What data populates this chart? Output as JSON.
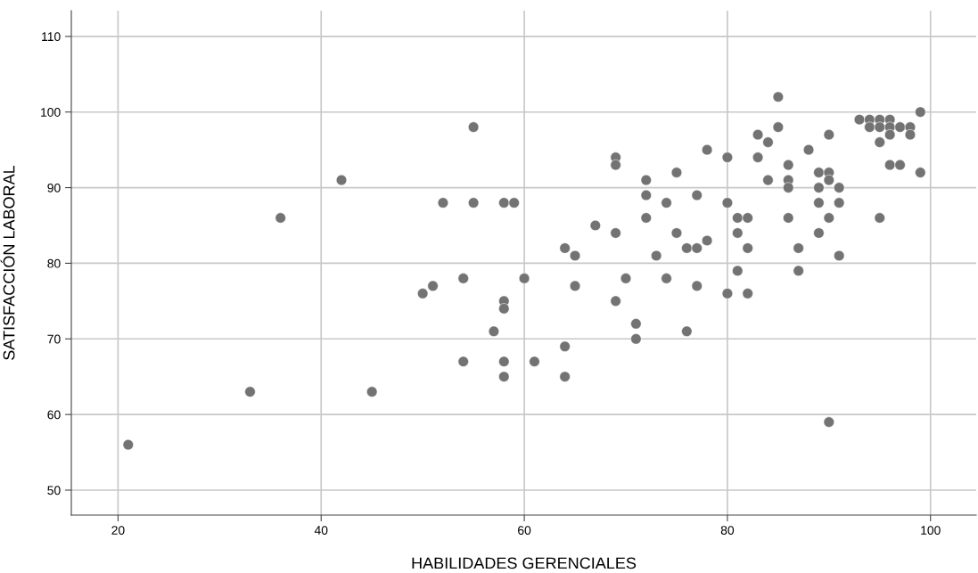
{
  "chart_data": {
    "type": "scatter",
    "xlabel": "HABILIDADES GERENCIALES",
    "ylabel": "SATISFACCIÓN LABORAL",
    "xlim": [
      15.4,
      104.5
    ],
    "ylim": [
      46.7,
      113.4
    ],
    "xticks": [
      20,
      40,
      60,
      80,
      100
    ],
    "yticks": [
      50,
      60,
      70,
      80,
      90,
      100,
      110
    ],
    "grid": true,
    "marker": "circle",
    "series": [
      {
        "color": "#737373",
        "x": [
          21,
          33,
          36,
          42,
          45,
          50,
          51,
          52,
          54,
          54,
          55,
          55,
          57,
          58,
          58,
          58,
          58,
          58,
          59,
          60,
          61,
          64,
          64,
          64,
          65,
          65,
          67,
          69,
          69,
          69,
          69,
          70,
          71,
          71,
          72,
          72,
          72,
          73,
          74,
          74,
          75,
          75,
          76,
          76,
          77,
          77,
          77,
          78,
          78,
          80,
          80,
          80,
          81,
          81,
          81,
          82,
          82,
          82,
          83,
          83,
          84,
          84,
          85,
          85,
          86,
          86,
          86,
          86,
          87,
          87,
          88,
          89,
          89,
          89,
          89,
          90,
          90,
          90,
          90,
          90,
          91,
          91,
          91,
          93,
          94,
          94,
          95,
          95,
          95,
          95,
          96,
          96,
          96,
          96,
          97,
          97,
          98,
          98,
          99,
          99
        ],
        "values": [
          56,
          63,
          86,
          91,
          63,
          76,
          77,
          88,
          78,
          67,
          98,
          88,
          71,
          88,
          75,
          74,
          67,
          65,
          88,
          78,
          67,
          82,
          69,
          65,
          81,
          77,
          85,
          94,
          93,
          84,
          75,
          78,
          72,
          70,
          91,
          89,
          86,
          81,
          88,
          78,
          92,
          84,
          82,
          71,
          89,
          82,
          77,
          95,
          83,
          94,
          88,
          76,
          86,
          84,
          79,
          86,
          82,
          76,
          97,
          94,
          96,
          91,
          102,
          98,
          93,
          91,
          90,
          86,
          82,
          79,
          95,
          92,
          90,
          88,
          84,
          97,
          92,
          91,
          86,
          59,
          90,
          88,
          81,
          99,
          99,
          98,
          99,
          98,
          96,
          86,
          99,
          98,
          97,
          93,
          98,
          93,
          98,
          97,
          100,
          92
        ]
      }
    ]
  }
}
